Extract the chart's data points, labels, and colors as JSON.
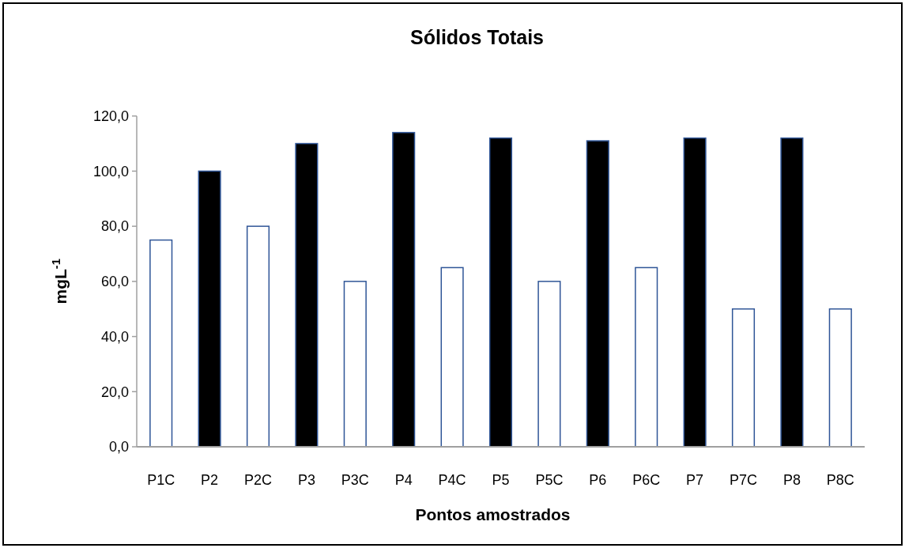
{
  "chart_data": {
    "type": "bar",
    "title": "Sólidos Totais",
    "xlabel": "Pontos amostrados",
    "ylabel": "mgL$^{-1}$",
    "categories": [
      "P1C",
      "P2",
      "P2C",
      "P3",
      "P3C",
      "P4",
      "P4C",
      "P5",
      "P5C",
      "P6",
      "P6C",
      "P7",
      "P7C",
      "P8",
      "P8C"
    ],
    "values": [
      75,
      100,
      80,
      110,
      60,
      114,
      65,
      112,
      60,
      111,
      65,
      112,
      50,
      112,
      50
    ],
    "colors": [
      "#ffffff",
      "#000000",
      "#ffffff",
      "#000000",
      "#ffffff",
      "#000000",
      "#ffffff",
      "#000000",
      "#ffffff",
      "#000000",
      "#ffffff",
      "#000000",
      "#ffffff",
      "#000000",
      "#ffffff"
    ],
    "ylim": [
      0,
      120
    ],
    "yticks": [
      {
        "value": 0,
        "label": "0,0"
      },
      {
        "value": 20,
        "label": "20,0"
      },
      {
        "value": 40,
        "label": "40,0"
      },
      {
        "value": 60,
        "label": "60,0"
      },
      {
        "value": 80,
        "label": "80,0"
      },
      {
        "value": 100,
        "label": "100,0"
      },
      {
        "value": 120,
        "label": "120,0"
      }
    ]
  }
}
